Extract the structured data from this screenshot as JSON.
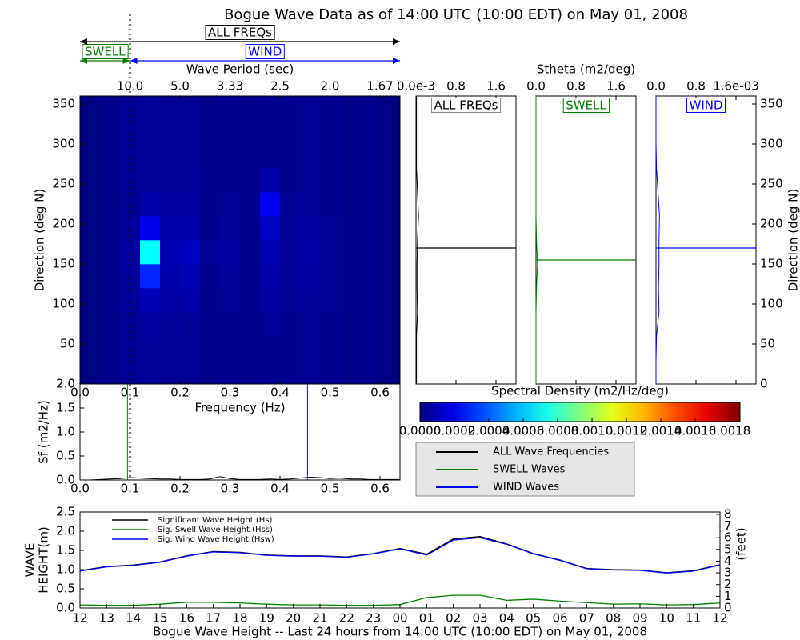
{
  "chart_data": [
    {
      "type": "heatmap",
      "title": "Bogue Wave Data as of 14:00 UTC (10:00 EDT) on May 01, 2008",
      "xlabel": "Frequency (Hz)",
      "ylabel": "Direction (deg N)",
      "top_label": "Wave Period (sec)",
      "xlim": [
        0,
        0.64
      ],
      "ylim": [
        0,
        360
      ],
      "xticks": [
        {
          "value": 0,
          "label": "0.0"
        },
        0.1,
        0.2,
        0.3,
        0.4,
        0.5,
        0.6
      ],
      "yticks": [
        0,
        50,
        100,
        150,
        200,
        250,
        300,
        350
      ],
      "top_ticks": [
        {
          "value": 0.1,
          "label": "10.0"
        },
        {
          "value": 0.2,
          "label": "5.0"
        },
        {
          "value": 0.3,
          "label": "3.33"
        },
        {
          "value": 0.4,
          "label": "2.5"
        },
        {
          "value": 0.5,
          "label": "2.0"
        },
        {
          "value": 0.6,
          "label": "1.67"
        }
      ],
      "split": 0.1,
      "bands": [
        {
          "label": "ALL FREQs",
          "color": "black",
          "range": [
            0,
            0.64
          ]
        },
        {
          "label": "SWELL",
          "color": "green",
          "range": [
            0,
            0.1
          ]
        },
        {
          "label": "WIND",
          "color": "blue",
          "range": [
            0.1,
            0.64
          ]
        }
      ],
      "xbins": [
        0,
        0.04,
        0.08,
        0.12,
        0.16,
        0.2,
        0.24,
        0.28,
        0.32,
        0.36,
        0.4,
        0.44,
        0.48,
        0.52,
        0.56,
        0.6,
        0.64
      ],
      "ybins": [
        0,
        30,
        60,
        90,
        120,
        150,
        180,
        210,
        240,
        270,
        300,
        330,
        360
      ],
      "values": [
        [
          1e-05,
          2e-05,
          4e-05,
          5e-05,
          4e-05,
          4e-05,
          2e-05,
          3e-05,
          2e-05,
          3e-05,
          3e-05,
          4e-05,
          3e-05,
          2e-05,
          2e-05,
          1e-05
        ],
        [
          1e-05,
          2e-05,
          4e-05,
          5e-05,
          4e-05,
          4e-05,
          2e-05,
          3e-05,
          2e-05,
          3e-05,
          3e-05,
          4e-05,
          3e-05,
          2e-05,
          2e-05,
          1e-05
        ],
        [
          1e-05,
          2e-05,
          4e-05,
          6e-05,
          5e-05,
          4e-05,
          3e-05,
          3e-05,
          2e-05,
          4e-05,
          3e-05,
          4e-05,
          3e-05,
          2e-05,
          2e-05,
          1e-05
        ],
        [
          1e-05,
          2e-05,
          5e-05,
          0.0001,
          7e-05,
          8e-05,
          3e-05,
          4e-05,
          3e-05,
          6e-05,
          4e-05,
          5e-05,
          4e-05,
          3e-05,
          2e-05,
          1e-05
        ],
        [
          1e-05,
          2e-05,
          5e-05,
          0.0003,
          8e-05,
          0.0001,
          3e-05,
          5e-05,
          3e-05,
          8e-05,
          4e-05,
          6e-05,
          4e-05,
          3e-05,
          2e-05,
          1e-05
        ],
        [
          1e-05,
          2e-05,
          6e-05,
          0.0007,
          0.0001,
          0.00012,
          4e-05,
          6e-05,
          3e-05,
          0.0001,
          5e-05,
          7e-05,
          4e-05,
          3e-05,
          2e-05,
          1e-05
        ],
        [
          1e-05,
          2e-05,
          5e-05,
          0.0002,
          8e-05,
          8e-05,
          3e-05,
          5e-05,
          3e-05,
          0.00012,
          5e-05,
          6e-05,
          4e-05,
          3e-05,
          2e-05,
          1e-05
        ],
        [
          1e-05,
          2e-05,
          4e-05,
          8e-05,
          6e-05,
          6e-05,
          3e-05,
          4e-05,
          3e-05,
          0.0002,
          4e-05,
          5e-05,
          3e-05,
          2e-05,
          2e-05,
          1e-05
        ],
        [
          1e-05,
          2e-05,
          4e-05,
          5e-05,
          5e-05,
          5e-05,
          3e-05,
          3e-05,
          2e-05,
          8e-05,
          3e-05,
          4e-05,
          3e-05,
          2e-05,
          2e-05,
          1e-05
        ],
        [
          1e-05,
          2e-05,
          4e-05,
          5e-05,
          4e-05,
          4e-05,
          2e-05,
          3e-05,
          2e-05,
          3e-05,
          3e-05,
          4e-05,
          3e-05,
          2e-05,
          2e-05,
          1e-05
        ],
        [
          1e-05,
          2e-05,
          4e-05,
          5e-05,
          4e-05,
          4e-05,
          2e-05,
          3e-05,
          2e-05,
          3e-05,
          3e-05,
          4e-05,
          3e-05,
          2e-05,
          2e-05,
          1e-05
        ],
        [
          1e-05,
          2e-05,
          4e-05,
          5e-05,
          4e-05,
          4e-05,
          2e-05,
          3e-05,
          2e-05,
          3e-05,
          3e-05,
          4e-05,
          3e-05,
          2e-05,
          2e-05,
          1e-05
        ]
      ],
      "colorbar": {
        "label": "Spectral Density (m2/Hz/deg)",
        "clim": [
          0,
          0.00186
        ],
        "ticks": [
          {
            "value": 0,
            "label": "0.0000"
          },
          0.0002,
          0.0004,
          0.0006,
          0.0008,
          {
            "value": 0.001,
            "label": "0.0010"
          },
          0.0012,
          0.0014,
          0.0016,
          0.0018
        ]
      }
    },
    {
      "type": "profile",
      "label": "ALL FREQs",
      "color": "black",
      "xlim": [
        0,
        2
      ],
      "ylim": [
        0,
        360
      ],
      "xticks": [
        {
          "value": 0,
          "label": "0.0e-3"
        },
        0.8,
        1.6
      ],
      "y": [
        0,
        30,
        60,
        90,
        120,
        150,
        180,
        210,
        240,
        270,
        300,
        330,
        360
      ],
      "values": [
        0.01,
        0.01,
        0.01,
        0.03,
        0.02,
        0.02,
        0.03,
        0.05,
        0.03,
        0.01,
        0.01,
        0.01,
        0.01
      ],
      "mean_direction": 170
    },
    {
      "type": "profile",
      "label": "SWELL",
      "color": "green",
      "xlabel": "Stheta (m2/deg)",
      "xlim": [
        0,
        2
      ],
      "ylim": [
        0,
        360
      ],
      "xticks": [
        {
          "value": 0,
          "label": "0.0"
        },
        0.8,
        1.6
      ],
      "y": [
        0,
        30,
        60,
        90,
        120,
        150,
        180,
        210,
        240,
        270,
        300,
        330,
        360
      ],
      "values": [
        0,
        0,
        0,
        0,
        0.01,
        0.03,
        0.01,
        0,
        0,
        0,
        0,
        0,
        0
      ],
      "mean_direction": 155
    },
    {
      "type": "profile",
      "label": "WIND",
      "color": "blue",
      "ylabel": "Direction (deg N)",
      "xlim": [
        0,
        2
      ],
      "ylim": [
        0,
        360
      ],
      "xticks": [
        {
          "value": 0,
          "label": "0.0"
        },
        0.8,
        {
          "value": 1.6,
          "label": "1.6e-03"
        }
      ],
      "yticks": [
        0,
        50,
        100,
        150,
        200,
        250,
        300,
        350
      ],
      "y": [
        0,
        30,
        60,
        90,
        120,
        150,
        180,
        210,
        240,
        270,
        300,
        330,
        360
      ],
      "values": [
        0,
        0,
        0.01,
        0.06,
        0.05,
        0.06,
        0.06,
        0.07,
        0.04,
        0.01,
        0,
        0,
        0
      ],
      "mean_direction": 170
    },
    {
      "type": "spectrum",
      "ylabel": "Sf (m2/Hz)",
      "xlim": [
        0,
        0.64
      ],
      "ylim": [
        0,
        2
      ],
      "xticks": [
        {
          "value": 0,
          "label": "0.0"
        },
        0.1,
        0.2,
        0.3,
        0.4,
        0.5,
        0.6
      ],
      "yticks": [
        {
          "value": 0,
          "label": "0.0"
        },
        0.5,
        {
          "value": 1,
          "label": "1.0"
        },
        1.5,
        {
          "value": 2,
          "label": "2.0"
        }
      ],
      "x": [
        0,
        0.02,
        0.04,
        0.06,
        0.08,
        0.1,
        0.12,
        0.14,
        0.16,
        0.18,
        0.2,
        0.22,
        0.24,
        0.26,
        0.28,
        0.3,
        0.32,
        0.34,
        0.36,
        0.38,
        0.4,
        0.42,
        0.44,
        0.46,
        0.48,
        0.5,
        0.52,
        0.54,
        0.56,
        0.58,
        0.6,
        0.62,
        0.64
      ],
      "series": [
        {
          "name": "ALL Wave Frequencies",
          "color": "black",
          "values": [
            0,
            0,
            0.01,
            0.02,
            0.03,
            0.05,
            0.04,
            0.03,
            0.02,
            0.02,
            0.01,
            0.01,
            0.01,
            0.02,
            0.07,
            0.03,
            0.01,
            0.01,
            0.01,
            0.02,
            0.01,
            0.02,
            0.04,
            0.06,
            0.05,
            0.03,
            0.04,
            0.02,
            0.02,
            0.01,
            0.01,
            0.01,
            0.01
          ]
        },
        {
          "name": "SWELL Waves",
          "color": "green",
          "peak": 0.095
        },
        {
          "name": "WIND Waves",
          "color": "blue",
          "peak": 0.455
        }
      ]
    },
    {
      "type": "line",
      "xlabel": "Bogue Wave Height -- Last 24 hours from 14:00 UTC (10:00 EDT) on May 01, 2008",
      "ylabel": [
        "WAVE",
        "HEIGHT(m)"
      ],
      "y2label": "(feet)",
      "categories": [
        "12",
        "13",
        "14",
        "15",
        "16",
        "17",
        "18",
        "19",
        "20",
        "21",
        "22",
        "23",
        "00",
        "01",
        "02",
        "03",
        "04",
        "05",
        "06",
        "07",
        "08",
        "09",
        "10",
        "11",
        "12"
      ],
      "ylim": [
        0,
        2.5
      ],
      "yticks": [
        {
          "value": 0,
          "label": "0.0"
        },
        0.5,
        {
          "value": 1,
          "label": "1.0"
        },
        1.5,
        {
          "value": 2,
          "label": "2.0"
        },
        2.5
      ],
      "y2lim": [
        0,
        8.2
      ],
      "y2ticks": [
        0,
        1,
        2,
        3,
        4,
        5,
        6,
        7,
        8
      ],
      "series": [
        {
          "name": "Significant Wave Height (Hs)",
          "color": "black",
          "values": [
            0.97,
            1.08,
            1.12,
            1.2,
            1.36,
            1.47,
            1.45,
            1.38,
            1.36,
            1.36,
            1.33,
            1.42,
            1.55,
            1.4,
            1.8,
            1.86,
            1.67,
            1.42,
            1.25,
            1.03,
            1.0,
            0.99,
            0.92,
            0.97,
            1.13
          ]
        },
        {
          "name": "Sig. Swell Wave Height (Hss)",
          "color": "green",
          "values": [
            0.08,
            0.07,
            0.07,
            0.1,
            0.15,
            0.15,
            0.13,
            0.1,
            0.08,
            0.08,
            0.07,
            0.07,
            0.09,
            0.27,
            0.33,
            0.33,
            0.2,
            0.23,
            0.18,
            0.14,
            0.1,
            0.11,
            0.08,
            0.09,
            0.13
          ]
        },
        {
          "name": "Sig. Wind Wave Height (Hsw)",
          "color": "blue",
          "values": [
            0.96,
            1.07,
            1.11,
            1.19,
            1.35,
            1.46,
            1.44,
            1.37,
            1.35,
            1.35,
            1.32,
            1.41,
            1.54,
            1.38,
            1.77,
            1.83,
            1.66,
            1.41,
            1.24,
            1.02,
            0.99,
            0.98,
            0.91,
            0.96,
            1.12
          ]
        }
      ]
    }
  ]
}
